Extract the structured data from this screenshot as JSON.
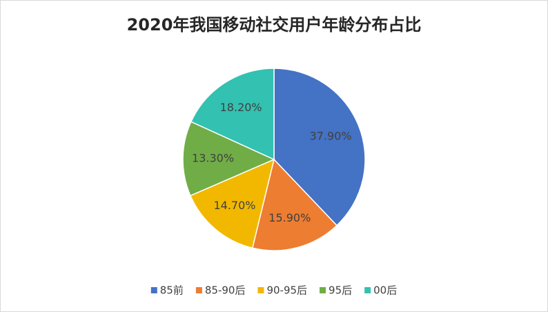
{
  "chart_data": {
    "type": "pie",
    "title": "2020年我国移动社交用户年龄分布占比",
    "categories": [
      "85前",
      "85-90后",
      "90-95后",
      "95后",
      "00后"
    ],
    "values": [
      37.9,
      15.9,
      14.7,
      13.3,
      18.2
    ],
    "value_labels": [
      "37.90%",
      "15.90%",
      "14.70%",
      "13.30%",
      "18.20%"
    ],
    "colors": [
      "#4472c4",
      "#ed7d31",
      "#f2b800",
      "#70ad47",
      "#33c1b1"
    ],
    "legend": "bottom"
  }
}
